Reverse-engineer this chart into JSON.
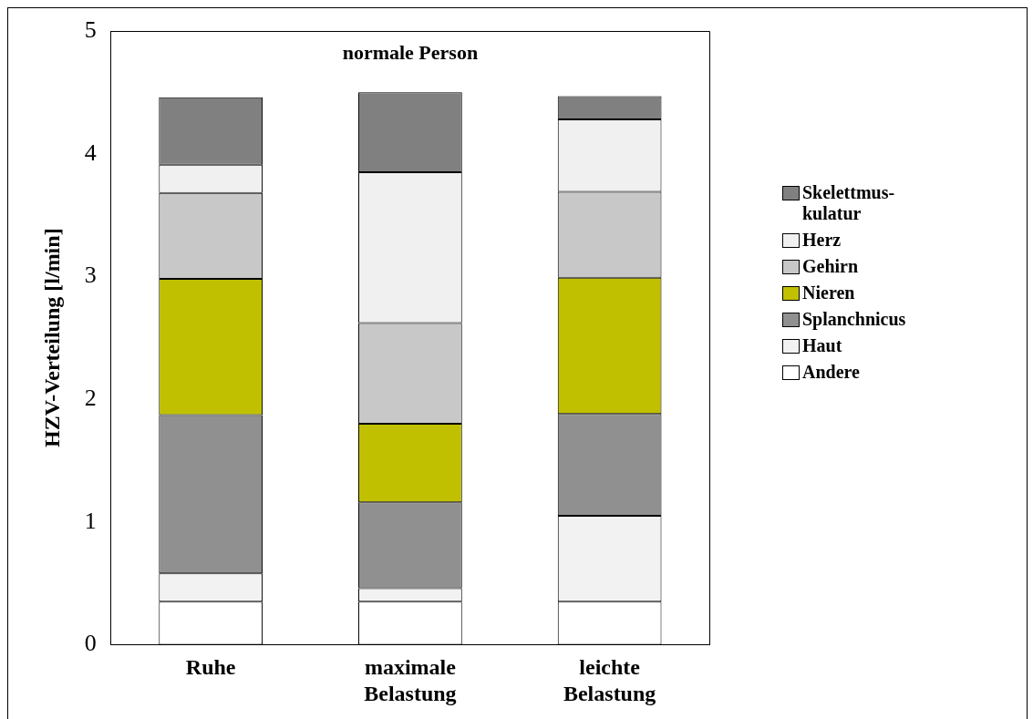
{
  "chart_data": {
    "type": "bar",
    "title": "normale Person",
    "ylabel": "HZV-Verteilung [l/min]",
    "categories": [
      "Ruhe",
      "maximale Belastung",
      "leichte Belastung"
    ],
    "stacked": true,
    "ylim": [
      0,
      5
    ],
    "yticks": [
      0,
      1,
      2,
      3,
      4,
      5
    ],
    "grid": false,
    "legend": "right",
    "series": [
      {
        "name": "Andere",
        "color": "#ffffff",
        "values": [
          0.35,
          0.35,
          0.35
        ]
      },
      {
        "name": "Haut",
        "color": "#f2f2f2",
        "values": [
          0.23,
          0.11,
          0.7
        ]
      },
      {
        "name": "Splanchnicus",
        "color": "#909090",
        "values": [
          1.29,
          0.7,
          0.83
        ]
      },
      {
        "name": "Nieren",
        "color": "#c0c000",
        "values": [
          1.11,
          0.64,
          1.11
        ]
      },
      {
        "name": "Gehirn",
        "color": "#c8c8c8",
        "values": [
          0.7,
          0.82,
          0.7
        ]
      },
      {
        "name": "Herz",
        "color": "#f0f0f0",
        "values": [
          0.23,
          1.23,
          0.59
        ]
      },
      {
        "name": "Skelettmus-kulatur",
        "color": "#808080",
        "values": [
          0.55,
          0.65,
          0.19
        ]
      }
    ]
  }
}
